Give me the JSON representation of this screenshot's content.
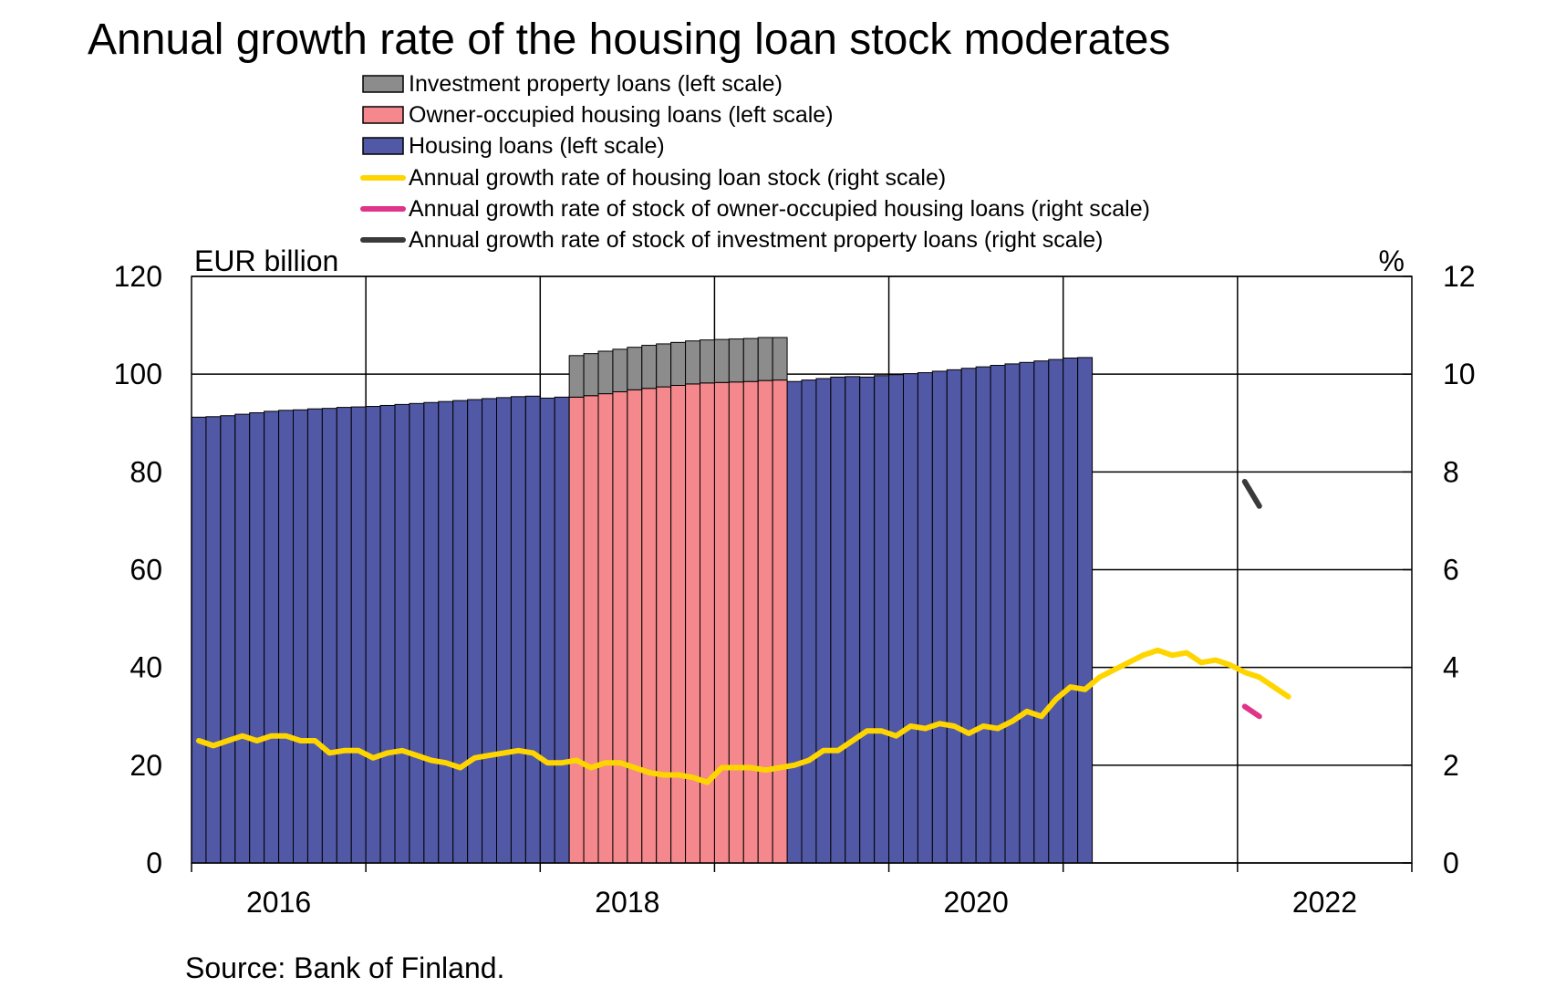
{
  "chart_data": {
    "type": "bar",
    "title": "Annual growth rate of the housing loan stock moderates",
    "source": "Source: Bank of Finland.",
    "left_axis": {
      "label": "EUR billion",
      "range": [
        0,
        120
      ],
      "ticks": [
        "0",
        "20",
        "40",
        "60",
        "80",
        "100",
        "120"
      ]
    },
    "right_axis": {
      "label": "%",
      "range": [
        0,
        12
      ],
      "ticks": [
        "0",
        "2",
        "4",
        "6",
        "8",
        "10",
        "12"
      ]
    },
    "x_axis": {
      "ticks": [
        "2016",
        "2018",
        "2020",
        "2022"
      ],
      "range": [
        "2016-01",
        "2022-12"
      ]
    },
    "grid": true,
    "legend_position": "top",
    "legend": [
      {
        "label": "Investment property loans (left scale)",
        "kind": "box",
        "color": "#8c8c8c"
      },
      {
        "label": "Owner-occupied housing loans (left scale)",
        "kind": "box",
        "color": "#f4888c"
      },
      {
        "label": "Housing loans (left scale)",
        "kind": "box",
        "color": "#5158a6"
      },
      {
        "label": "Annual growth rate of housing loan stock (right scale)",
        "kind": "line",
        "color": "#ffd500"
      },
      {
        "label": "Annual growth rate of stock of owner-occupied housing loans (right scale)",
        "kind": "line",
        "color": "#e0348a"
      },
      {
        "label": "Annual growth rate of stock of investment property loans (right scale)",
        "kind": "line",
        "color": "#3a3a3a"
      }
    ],
    "series": {
      "housing_loans": {
        "start": "2016-01",
        "values": [
          91.2,
          91.3,
          91.5,
          91.8,
          92.1,
          92.4,
          92.6,
          92.7,
          92.9,
          93.0,
          93.2,
          93.3,
          93.4,
          93.6,
          93.8,
          94.0,
          94.2,
          94.4,
          94.6,
          94.8,
          95.0,
          95.2,
          95.4,
          95.5,
          95.1,
          95.3,
          95.5,
          95.7,
          95.9,
          96.1,
          96.3,
          96.5,
          96.7,
          96.9,
          97.1,
          97.2,
          97.3,
          97.5,
          97.7,
          97.9,
          98.2,
          98.5,
          98.8,
          99.1,
          99.4,
          99.5,
          99.4,
          99.7,
          99.9,
          100.1,
          100.3,
          100.6,
          100.9,
          101.2,
          101.5,
          101.8,
          102.1,
          102.4,
          102.7,
          103.0,
          103.3,
          103.4
        ]
      },
      "owner_occupied_loans": {
        "start": "2018-03",
        "values": [
          95.3,
          95.6,
          96.0,
          96.4,
          96.8,
          97.1,
          97.4,
          97.7,
          98.0,
          98.2,
          98.3,
          98.4,
          98.5,
          98.7,
          98.8
        ]
      },
      "investment_property_loans": {
        "start": "2018-03",
        "values": [
          8.5,
          8.6,
          8.7,
          8.7,
          8.7,
          8.8,
          8.8,
          8.8,
          8.8,
          8.8,
          8.8,
          8.8,
          8.8,
          8.8,
          8.7
        ]
      },
      "growth_housing_loan_stock": {
        "start": "2016-01",
        "values": [
          2.5,
          2.4,
          2.5,
          2.6,
          2.5,
          2.6,
          2.6,
          2.5,
          2.5,
          2.25,
          2.3,
          2.3,
          2.15,
          2.25,
          2.3,
          2.2,
          2.1,
          2.05,
          1.95,
          2.15,
          2.2,
          2.25,
          2.3,
          2.25,
          2.05,
          2.05,
          2.1,
          1.95,
          2.05,
          2.05,
          1.95,
          1.85,
          1.8,
          1.8,
          1.75,
          1.65,
          1.95,
          1.95,
          1.95,
          1.9,
          1.95,
          2.0,
          2.1,
          2.3,
          2.3,
          2.5,
          2.7,
          2.7,
          2.6,
          2.8,
          2.75,
          2.85,
          2.8,
          2.65,
          2.8,
          2.75,
          2.9,
          3.1,
          3.0,
          3.35,
          3.6,
          3.55,
          3.8,
          3.95,
          4.1,
          4.25,
          4.35,
          4.25,
          4.3,
          4.1,
          4.15,
          4.05,
          3.9,
          3.8,
          3.6,
          3.4
        ]
      },
      "growth_owner_occupied": {
        "start": "2022-01",
        "values": [
          3.2,
          3.0
        ]
      },
      "growth_investment_property": {
        "start": "2022-01",
        "values": [
          7.8,
          7.3
        ]
      }
    }
  }
}
